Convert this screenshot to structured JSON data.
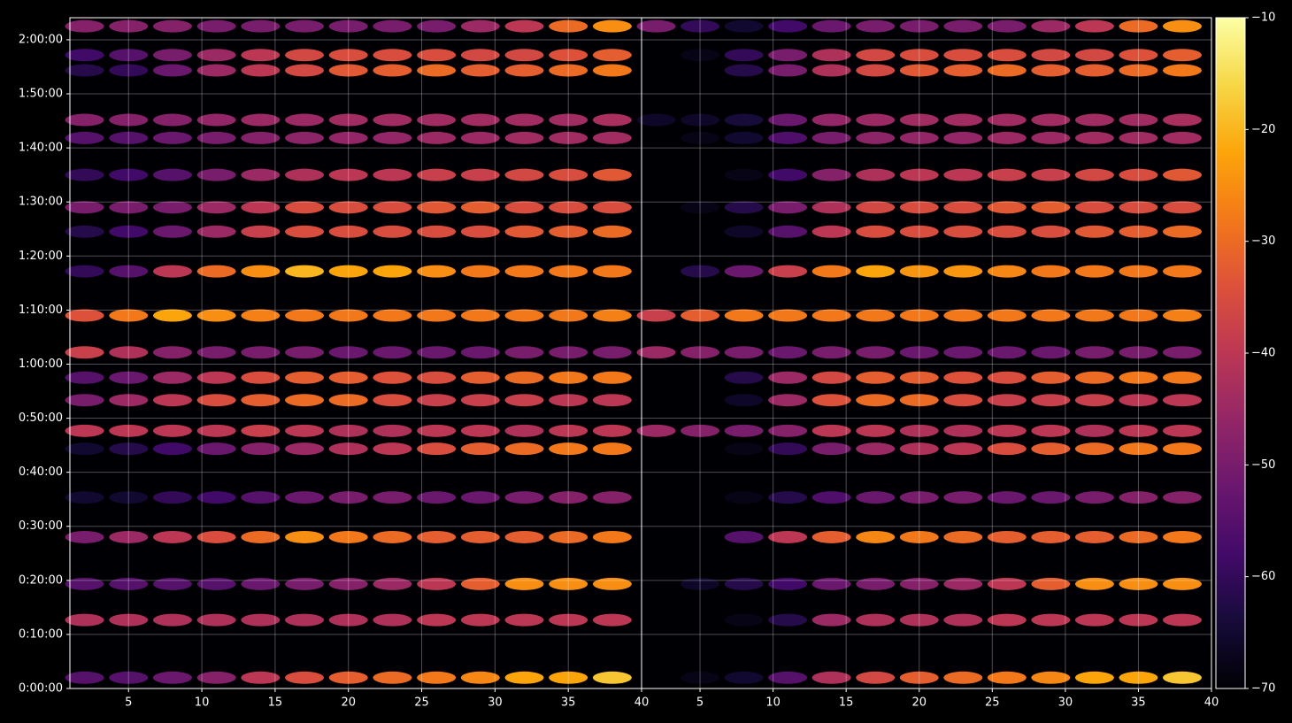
{
  "chart_data": [
    {
      "type": "heatmap",
      "colormap": "inferno",
      "grid": true,
      "x": [
        2,
        5,
        8,
        11,
        14,
        17,
        20,
        23,
        26,
        29,
        32,
        35,
        38
      ],
      "y": [
        120,
        760,
        1160,
        1680,
        2120,
        2660,
        2860,
        3200,
        3450,
        3730,
        4140,
        4630,
        5070,
        5340,
        5700,
        6110,
        6310,
        6860,
        7030,
        7350
      ],
      "z": [
        [
          -55,
          -55,
          -52,
          -48,
          -40,
          -35,
          -32,
          -30,
          -28,
          -26,
          -22,
          -22,
          -18
        ],
        [
          -42,
          -42,
          -42,
          -42,
          -42,
          -42,
          -42,
          -42,
          -40,
          -40,
          -40,
          -40,
          -40
        ],
        [
          -55,
          -55,
          -55,
          -55,
          -52,
          -50,
          -48,
          -45,
          -40,
          -32,
          -25,
          -25,
          -25
        ],
        [
          -50,
          -45,
          -40,
          -35,
          -30,
          -25,
          -28,
          -30,
          -32,
          -32,
          -32,
          -30,
          -28
        ],
        [
          -65,
          -65,
          -60,
          -58,
          -55,
          -52,
          -50,
          -50,
          -52,
          -52,
          -50,
          -48,
          -48
        ],
        [
          -65,
          -62,
          -58,
          -52,
          -48,
          -45,
          -42,
          -40,
          -35,
          -32,
          -30,
          -28,
          -28
        ],
        [
          -40,
          -40,
          -40,
          -40,
          -38,
          -40,
          -42,
          -42,
          -40,
          -40,
          -42,
          -40,
          -40
        ],
        [
          -50,
          -45,
          -40,
          -35,
          -32,
          -30,
          -30,
          -35,
          -38,
          -38,
          -38,
          -40,
          -40
        ],
        [
          -55,
          -52,
          -45,
          -40,
          -35,
          -32,
          -32,
          -34,
          -35,
          -32,
          -30,
          -28,
          -28
        ],
        [
          -38,
          -42,
          -48,
          -50,
          -50,
          -50,
          -52,
          -52,
          -52,
          -52,
          -50,
          -50,
          -50
        ],
        [
          -34,
          -28,
          -22,
          -25,
          -27,
          -28,
          -28,
          -28,
          -28,
          -28,
          -28,
          -28,
          -27
        ],
        [
          -60,
          -55,
          -40,
          -30,
          -25,
          -20,
          -22,
          -22,
          -25,
          -28,
          -28,
          -28,
          -28
        ],
        [
          -62,
          -58,
          -52,
          -45,
          -38,
          -35,
          -35,
          -35,
          -35,
          -35,
          -33,
          -32,
          -30
        ],
        [
          -50,
          -50,
          -50,
          -45,
          -40,
          -35,
          -35,
          -35,
          -33,
          -32,
          -35,
          -35,
          -35
        ],
        [
          -60,
          -58,
          -55,
          -50,
          -45,
          -42,
          -40,
          -40,
          -38,
          -38,
          -36,
          -35,
          -33
        ],
        [
          -55,
          -55,
          -52,
          -50,
          -48,
          -47,
          -46,
          -46,
          -45,
          -45,
          -44,
          -44,
          -44
        ],
        [
          -48,
          -48,
          -48,
          -46,
          -45,
          -45,
          -44,
          -44,
          -44,
          -44,
          -44,
          -44,
          -43
        ],
        [
          -62,
          -60,
          -52,
          -45,
          -40,
          -36,
          -33,
          -32,
          -30,
          -32,
          -32,
          -30,
          -28
        ],
        [
          -58,
          -55,
          -50,
          -45,
          -40,
          -36,
          -35,
          -35,
          -35,
          -36,
          -36,
          -34,
          -32
        ],
        [
          -48,
          -48,
          -48,
          -50,
          -50,
          -50,
          -50,
          -50,
          -50,
          -45,
          -40,
          -30,
          -25
        ]
      ],
      "xlim": [
        1,
        40
      ],
      "ylim": [
        0,
        7445
      ],
      "xticks": [
        5,
        10,
        15,
        20,
        25,
        30,
        35,
        40
      ],
      "yticks": [
        {
          "value": 0,
          "label": "0:00:00"
        },
        {
          "value": 600,
          "label": "0:10:00"
        },
        {
          "value": 1200,
          "label": "0:20:00"
        },
        {
          "value": 1800,
          "label": "0:30:00"
        },
        {
          "value": 2400,
          "label": "0:40:00"
        },
        {
          "value": 3000,
          "label": "0:50:00"
        },
        {
          "value": 3600,
          "label": "1:00:00"
        },
        {
          "value": 4200,
          "label": "1:10:00"
        },
        {
          "value": 4800,
          "label": "1:20:00"
        },
        {
          "value": 5400,
          "label": "1:30:00"
        },
        {
          "value": 6000,
          "label": "1:40:00"
        },
        {
          "value": 6600,
          "label": "1:50:00"
        },
        {
          "value": 7200,
          "label": "2:00:00"
        }
      ],
      "zlim": [
        -70,
        -10
      ],
      "zticks": [
        {
          "value": -70,
          "label": "−70"
        },
        {
          "value": -60,
          "label": "−60"
        },
        {
          "value": -50,
          "label": "−50"
        },
        {
          "value": -40,
          "label": "−40"
        },
        {
          "value": -30,
          "label": "−30"
        },
        {
          "value": -20,
          "label": "−20"
        },
        {
          "value": -10,
          "label": "−10"
        }
      ]
    },
    {
      "type": "heatmap",
      "colormap": "inferno",
      "grid": true,
      "x": [
        2,
        5,
        8,
        11,
        14,
        17,
        20,
        23,
        26,
        29,
        32,
        35,
        38
      ],
      "y": [
        120,
        760,
        1160,
        1680,
        2120,
        2660,
        2860,
        3200,
        3450,
        3730,
        4140,
        4630,
        5070,
        5340,
        5700,
        6110,
        6310,
        6860,
        7030,
        7350
      ],
      "z": [
        [
          -70,
          -68,
          -65,
          -55,
          -42,
          -36,
          -32,
          -30,
          -28,
          -26,
          -22,
          -22,
          -18
        ],
        [
          -70,
          -70,
          -68,
          -62,
          -45,
          -42,
          -42,
          -42,
          -40,
          -40,
          -40,
          -40,
          -40
        ],
        [
          -70,
          -66,
          -62,
          -58,
          -52,
          -50,
          -48,
          -45,
          -40,
          -32,
          -25,
          -25,
          -25
        ],
        [
          -70,
          -70,
          -55,
          -40,
          -32,
          -26,
          -28,
          -30,
          -32,
          -32,
          -32,
          -30,
          -28
        ],
        [
          -70,
          -70,
          -68,
          -62,
          -56,
          -52,
          -50,
          -50,
          -52,
          -52,
          -50,
          -48,
          -48
        ],
        [
          -70,
          -70,
          -68,
          -60,
          -50,
          -45,
          -42,
          -40,
          -35,
          -32,
          -30,
          -28,
          -28
        ],
        [
          -45,
          -48,
          -50,
          -48,
          -40,
          -40,
          -42,
          -42,
          -40,
          -40,
          -42,
          -40,
          -40
        ],
        [
          -70,
          -70,
          -66,
          -45,
          -34,
          -30,
          -30,
          -35,
          -38,
          -38,
          -38,
          -40,
          -40
        ],
        [
          -70,
          -70,
          -62,
          -45,
          -36,
          -32,
          -32,
          -34,
          -35,
          -32,
          -30,
          -28,
          -28
        ],
        [
          -45,
          -48,
          -50,
          -52,
          -50,
          -50,
          -52,
          -52,
          -52,
          -52,
          -50,
          -50,
          -50
        ],
        [
          -38,
          -32,
          -28,
          -28,
          -28,
          -28,
          -28,
          -28,
          -28,
          -28,
          -28,
          -28,
          -27
        ],
        [
          -70,
          -62,
          -52,
          -38,
          -28,
          -22,
          -24,
          -24,
          -26,
          -28,
          -28,
          -28,
          -28
        ],
        [
          -70,
          -70,
          -66,
          -55,
          -40,
          -35,
          -35,
          -35,
          -35,
          -35,
          -33,
          -32,
          -30
        ],
        [
          -70,
          -68,
          -62,
          -50,
          -42,
          -36,
          -35,
          -35,
          -33,
          -32,
          -35,
          -35,
          -35
        ],
        [
          -70,
          -70,
          -68,
          -58,
          -48,
          -42,
          -40,
          -40,
          -38,
          -38,
          -36,
          -35,
          -33
        ],
        [
          -70,
          -68,
          -65,
          -56,
          -50,
          -47,
          -46,
          -46,
          -45,
          -45,
          -44,
          -44,
          -44
        ],
        [
          -66,
          -66,
          -64,
          -52,
          -46,
          -45,
          -44,
          -44,
          -44,
          -44,
          -44,
          -44,
          -43
        ],
        [
          -70,
          -70,
          -62,
          -50,
          -42,
          -36,
          -33,
          -32,
          -30,
          -32,
          -32,
          -30,
          -28
        ],
        [
          -70,
          -68,
          -60,
          -50,
          -42,
          -36,
          -35,
          -35,
          -35,
          -36,
          -36,
          -34,
          -32
        ],
        [
          -50,
          -60,
          -65,
          -58,
          -52,
          -50,
          -50,
          -50,
          -50,
          -45,
          -40,
          -30,
          -25
        ]
      ],
      "xlim": [
        1,
        40
      ],
      "ylim": [
        0,
        7445
      ],
      "xticks": [
        5,
        10,
        15,
        20,
        25,
        30,
        35,
        40
      ]
    }
  ]
}
